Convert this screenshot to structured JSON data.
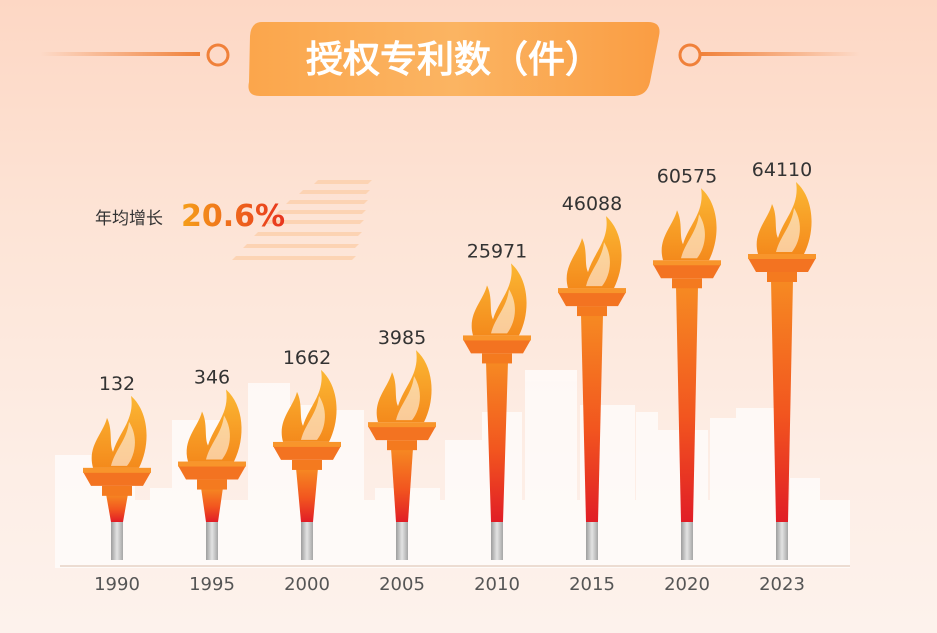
{
  "chart_data": {
    "type": "bar",
    "title": "授权专利数（件）",
    "categories": [
      "1990",
      "1995",
      "2000",
      "2005",
      "2010",
      "2015",
      "2020",
      "2023"
    ],
    "values": [
      132,
      346,
      1662,
      3985,
      25971,
      46088,
      60575,
      64110
    ],
    "value_labels": [
      "132",
      "346",
      "1662",
      "3985",
      "25971",
      "46088",
      "60575",
      "64110"
    ],
    "annotation": {
      "label": "年均增长",
      "value": "20.6%"
    },
    "xlabel": "",
    "ylabel": "",
    "grid": false,
    "legend": "none"
  },
  "colors": {
    "title_banner": "#fbab53",
    "title_text": "#ffffff",
    "accent_line": "#f0813a",
    "torch_top": "#f68a22",
    "torch_bottom": "#e11d26",
    "flame": "#f7a21e",
    "handle": "#b9b9b9",
    "value_text": "#333333",
    "axis_text": "#555555",
    "growth_value": "#f07a1b",
    "buildings": "#ffffff"
  },
  "icons": {
    "mark": "torch-icon"
  }
}
